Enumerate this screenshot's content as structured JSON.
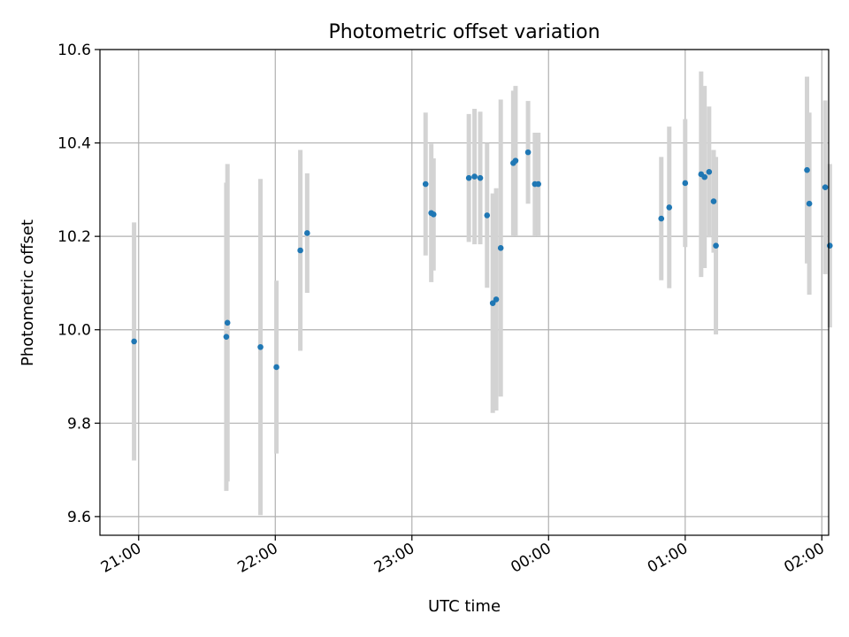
{
  "chart_data": {
    "type": "scatter",
    "title": "Photometric offset variation",
    "xlabel": "UTC time",
    "ylabel": "Photometric offset",
    "ylim": [
      9.56,
      10.6
    ],
    "xlim_minutes_from_2100": [
      -17,
      303
    ],
    "grid": true,
    "y_ticks": [
      9.6,
      9.8,
      10.0,
      10.2,
      10.4,
      10.6
    ],
    "y_tick_labels": [
      "9.6",
      "9.8",
      "10.0",
      "10.2",
      "10.4",
      "10.6"
    ],
    "x_ticks_minutes": [
      0,
      60,
      120,
      180,
      240,
      300
    ],
    "x_tick_labels": [
      "21:00",
      "22:00",
      "23:00",
      "00:00",
      "01:00",
      "02:00"
    ],
    "marker_color": "#1f77b4",
    "errorbar_color": "#d3d3d3",
    "points": [
      {
        "t": -2,
        "y": 9.975,
        "err": 0.255
      },
      {
        "t": 38.5,
        "y": 9.985,
        "err": 0.33
      },
      {
        "t": 39,
        "y": 10.015,
        "err": 0.34
      },
      {
        "t": 53.5,
        "y": 9.963,
        "err": 0.36
      },
      {
        "t": 60.5,
        "y": 9.92,
        "err": 0.185
      },
      {
        "t": 71,
        "y": 10.17,
        "err": 0.215
      },
      {
        "t": 74,
        "y": 10.207,
        "err": 0.128
      },
      {
        "t": 126,
        "y": 10.312,
        "err": 0.153
      },
      {
        "t": 128.5,
        "y": 10.25,
        "err": 0.148
      },
      {
        "t": 129.5,
        "y": 10.247,
        "err": 0.12
      },
      {
        "t": 145,
        "y": 10.325,
        "err": 0.137
      },
      {
        "t": 147.5,
        "y": 10.328,
        "err": 0.145
      },
      {
        "t": 150,
        "y": 10.325,
        "err": 0.142
      },
      {
        "t": 153,
        "y": 10.245,
        "err": 0.155
      },
      {
        "t": 155.5,
        "y": 10.057,
        "err": 0.235
      },
      {
        "t": 157,
        "y": 10.065,
        "err": 0.238
      },
      {
        "t": 159,
        "y": 10.175,
        "err": 0.318
      },
      {
        "t": 164.5,
        "y": 10.357,
        "err": 0.155
      },
      {
        "t": 165.5,
        "y": 10.362,
        "err": 0.16
      },
      {
        "t": 171,
        "y": 10.38,
        "err": 0.11
      },
      {
        "t": 174,
        "y": 10.312,
        "err": 0.11
      },
      {
        "t": 175.5,
        "y": 10.312,
        "err": 0.11
      },
      {
        "t": 229.5,
        "y": 10.238,
        "err": 0.132
      },
      {
        "t": 233,
        "y": 10.262,
        "err": 0.173
      },
      {
        "t": 240,
        "y": 10.314,
        "err": 0.137
      },
      {
        "t": 247,
        "y": 10.333,
        "err": 0.22
      },
      {
        "t": 248.5,
        "y": 10.327,
        "err": 0.195
      },
      {
        "t": 250.5,
        "y": 10.338,
        "err": 0.14
      },
      {
        "t": 252.5,
        "y": 10.275,
        "err": 0.11
      },
      {
        "t": 253.5,
        "y": 10.18,
        "err": 0.19
      },
      {
        "t": 293.5,
        "y": 10.342,
        "err": 0.2
      },
      {
        "t": 294.5,
        "y": 10.27,
        "err": 0.195
      },
      {
        "t": 301.5,
        "y": 10.305,
        "err": 0.186
      },
      {
        "t": 303.5,
        "y": 10.18,
        "err": 0.175
      }
    ]
  }
}
